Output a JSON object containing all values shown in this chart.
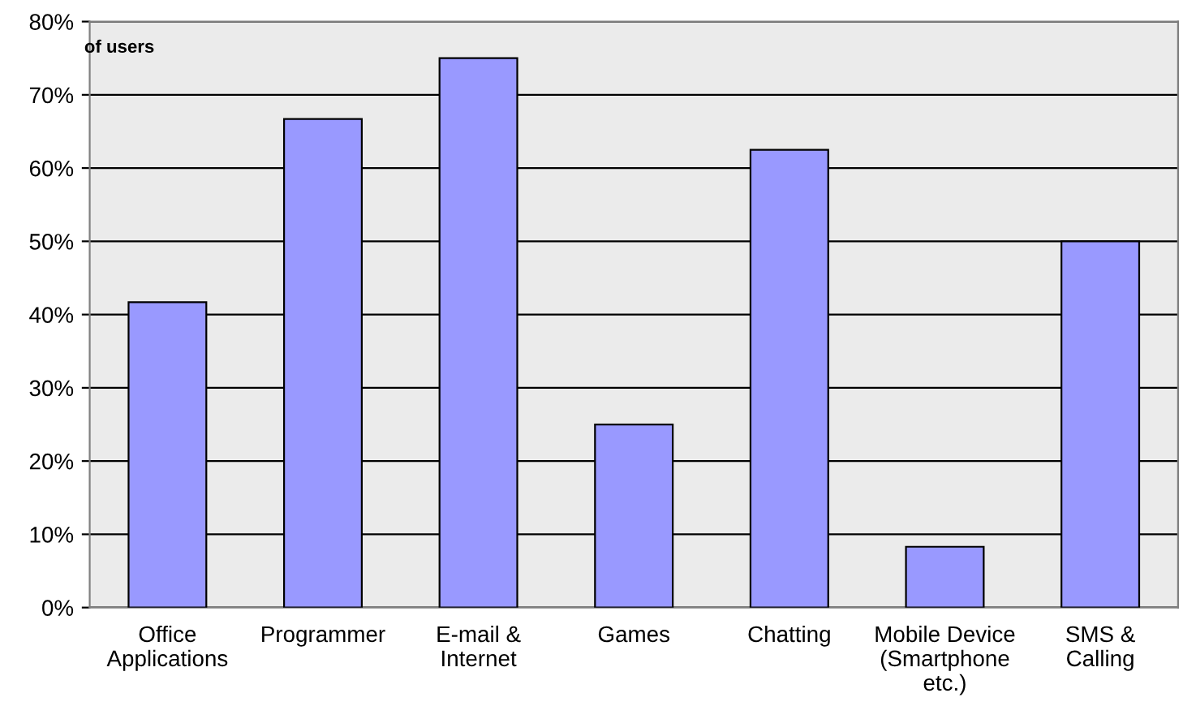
{
  "chart_data": {
    "type": "bar",
    "ylabel": "of users",
    "categories": [
      "Office\nApplications",
      "Programmer",
      "E-mail &\nInternet",
      "Games",
      "Chatting",
      "Mobile Device\n(Smartphone\netc.)",
      "SMS &\nCalling"
    ],
    "values": [
      41.7,
      66.7,
      75,
      25,
      62.5,
      8.3,
      50
    ],
    "color": "#9999ff",
    "ylim": [
      0,
      80
    ],
    "yticks": [
      {
        "value": 0,
        "label": "0%"
      },
      {
        "value": 10,
        "label": "10%"
      },
      {
        "value": 20,
        "label": "20%"
      },
      {
        "value": 30,
        "label": "30%"
      },
      {
        "value": 40,
        "label": "40%"
      },
      {
        "value": 50,
        "label": "50%"
      },
      {
        "value": 60,
        "label": "60%"
      },
      {
        "value": 70,
        "label": "70%"
      },
      {
        "value": 80,
        "label": "80%"
      }
    ],
    "grid": "y",
    "legend": false
  }
}
